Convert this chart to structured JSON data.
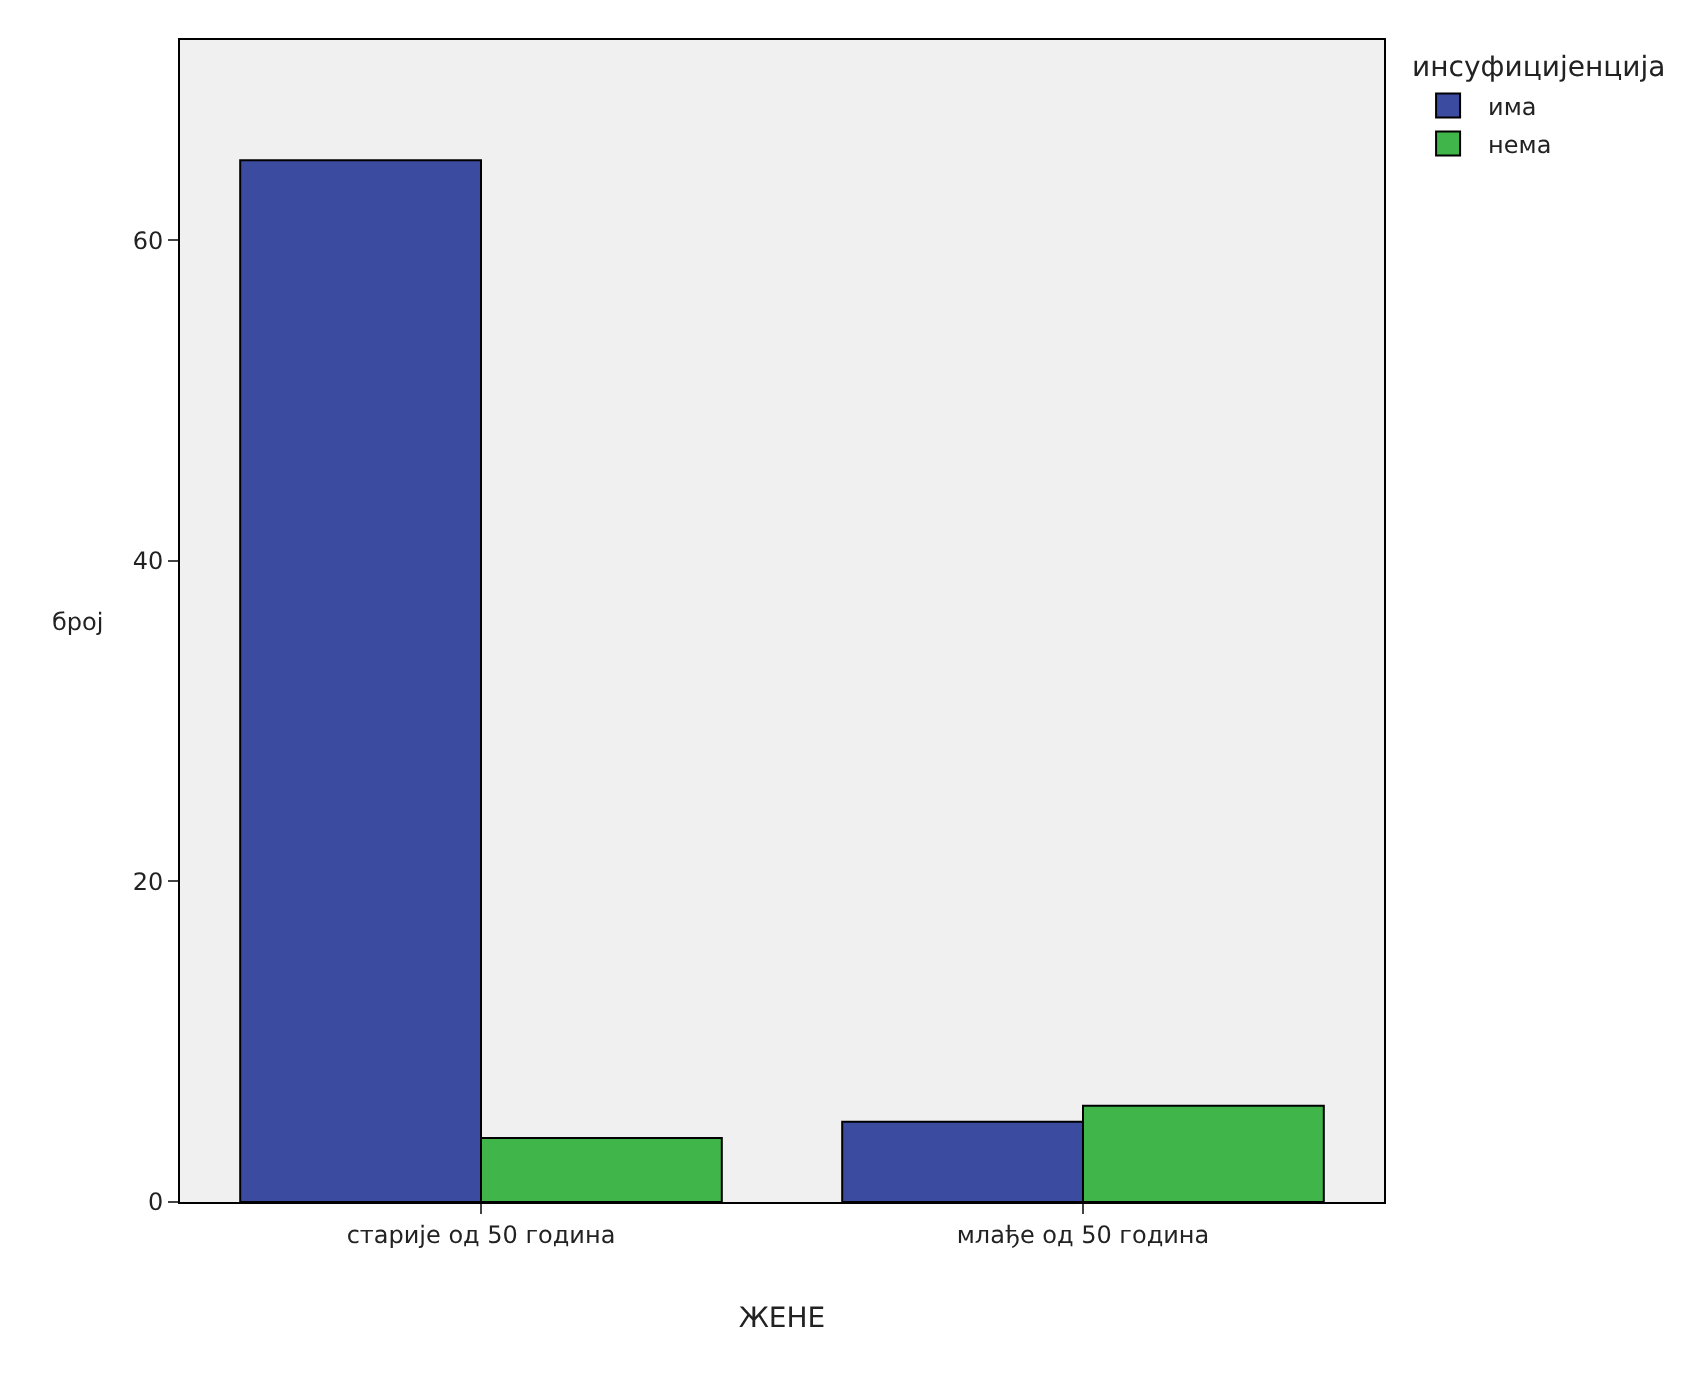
{
  "chart_data": {
    "type": "bar",
    "xlabel": "ЖЕНЕ",
    "ylabel": "број",
    "legend_title": "инсуфицијенција",
    "categories": [
      "старије од 50 година",
      "млађе од 50 година"
    ],
    "series": [
      {
        "name": "има",
        "color": "#3b4ba0",
        "values": [
          65,
          5
        ]
      },
      {
        "name": "нема",
        "color": "#3fb54a",
        "values": [
          4,
          6
        ]
      }
    ],
    "ylim": [
      0,
      72.5
    ],
    "yticks": [
      0,
      20,
      40,
      60
    ],
    "grid": false,
    "legend": "top right"
  }
}
